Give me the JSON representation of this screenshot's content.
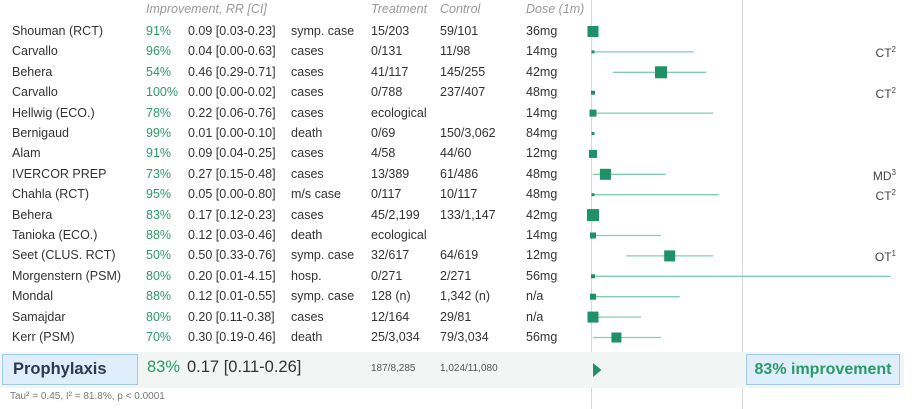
{
  "headers": {
    "improvement": "Improvement, RR [CI]",
    "treatment": "Treatment",
    "control": "Control",
    "dose": "Dose (1m)"
  },
  "chart_data": {
    "type": "forest",
    "log_scale": true,
    "studies": [
      {
        "name": "Shouman (RCT)",
        "improvement": "91%",
        "rr_text": "0.09 [0.03-0.23]",
        "rr": 0.09,
        "ci": [
          0.03,
          0.23
        ],
        "outcome": "symp. case",
        "treatment": "15/203",
        "control": "59/101",
        "dose": "36mg",
        "note": "",
        "note_sup": ""
      },
      {
        "name": "Carvallo",
        "improvement": "96%",
        "rr_text": "0.04 [0.00-0.63]",
        "rr": 0.04,
        "ci": [
          0.003,
          0.63
        ],
        "outcome": "cases",
        "treatment": "0/131",
        "control": "11/98",
        "dose": "14mg",
        "note": "CT",
        "note_sup": "2"
      },
      {
        "name": "Behera",
        "improvement": "54%",
        "rr_text": "0.46 [0.29-0.71]",
        "rr": 0.46,
        "ci": [
          0.29,
          0.71
        ],
        "outcome": "cases",
        "treatment": "41/117",
        "control": "145/255",
        "dose": "42mg",
        "note": "",
        "note_sup": ""
      },
      {
        "name": "Carvallo",
        "improvement": "100%",
        "rr_text": "0.00 [0.00-0.02]",
        "rr": 0.001,
        "ci": [
          0.0005,
          0.02
        ],
        "outcome": "cases",
        "treatment": "0/788",
        "control": "237/407",
        "dose": "48mg",
        "note": "CT",
        "note_sup": "2"
      },
      {
        "name": "Hellwig (ECO.)",
        "improvement": "78%",
        "rr_text": "0.22 [0.06-0.76]",
        "rr": 0.22,
        "ci": [
          0.06,
          0.76
        ],
        "outcome": "cases",
        "treatment": "ecological",
        "control": "",
        "dose": "14mg",
        "note": "",
        "note_sup": ""
      },
      {
        "name": "Bernigaud",
        "improvement": "99%",
        "rr_text": "0.01 [0.00-0.10]",
        "rr": 0.01,
        "ci": [
          0.002,
          0.1
        ],
        "outcome": "death",
        "treatment": "0/69",
        "control": "150/3,062",
        "dose": "84mg",
        "note": "",
        "note_sup": ""
      },
      {
        "name": "Alam",
        "improvement": "91%",
        "rr_text": "0.09 [0.04-0.25]",
        "rr": 0.09,
        "ci": [
          0.04,
          0.25
        ],
        "outcome": "cases",
        "treatment": "4/58",
        "control": "44/60",
        "dose": "12mg",
        "note": "",
        "note_sup": ""
      },
      {
        "name": "IVERCOR PREP",
        "improvement": "73%",
        "rr_text": "0.27 [0.15-0.48]",
        "rr": 0.27,
        "ci": [
          0.15,
          0.48
        ],
        "outcome": "cases",
        "treatment": "13/389",
        "control": "61/486",
        "dose": "48mg",
        "note": "MD",
        "note_sup": "3"
      },
      {
        "name": "Chahla (RCT)",
        "improvement": "95%",
        "rr_text": "0.05 [0.00-0.80]",
        "rr": 0.05,
        "ci": [
          0.003,
          0.8
        ],
        "outcome": "m/s case",
        "treatment": "0/117",
        "control": "10/117",
        "dose": "48mg",
        "note": "CT",
        "note_sup": "2"
      },
      {
        "name": "Behera",
        "improvement": "83%",
        "rr_text": "0.17 [0.12-0.23]",
        "rr": 0.17,
        "ci": [
          0.12,
          0.23
        ],
        "outcome": "cases",
        "treatment": "45/2,199",
        "control": "133/1,147",
        "dose": "42mg",
        "note": "",
        "note_sup": ""
      },
      {
        "name": "Tanioka (ECO.)",
        "improvement": "88%",
        "rr_text": "0.12 [0.03-0.46]",
        "rr": 0.12,
        "ci": [
          0.03,
          0.46
        ],
        "outcome": "death",
        "treatment": "ecological",
        "control": "",
        "dose": "14mg",
        "note": "",
        "note_sup": ""
      },
      {
        "name": "Seet (CLUS. RCT)",
        "improvement": "50%",
        "rr_text": "0.50 [0.33-0.76]",
        "rr": 0.5,
        "ci": [
          0.33,
          0.76
        ],
        "outcome": "symp. case",
        "treatment": "32/617",
        "control": "64/619",
        "dose": "12mg",
        "note": "OT",
        "note_sup": "1"
      },
      {
        "name": "Morgenstern (PSM)",
        "improvement": "80%",
        "rr_text": "0.20 [0.01-4.15]",
        "rr": 0.2,
        "ci": [
          0.01,
          4.15
        ],
        "outcome": "hosp.",
        "treatment": "0/271",
        "control": "2/271",
        "dose": "56mg",
        "note": "",
        "note_sup": ""
      },
      {
        "name": "Mondal",
        "improvement": "88%",
        "rr_text": "0.12 [0.01-0.55]",
        "rr": 0.12,
        "ci": [
          0.01,
          0.55
        ],
        "outcome": "symp. case",
        "treatment": "128 (n)",
        "control": "1,342 (n)",
        "dose": "n/a",
        "note": "",
        "note_sup": ""
      },
      {
        "name": "Samajdar",
        "improvement": "80%",
        "rr_text": "0.20 [0.11-0.38]",
        "rr": 0.2,
        "ci": [
          0.11,
          0.38
        ],
        "outcome": "cases",
        "treatment": "12/164",
        "control": "29/81",
        "dose": "n/a",
        "note": "",
        "note_sup": ""
      },
      {
        "name": "Kerr (PSM)",
        "improvement": "70%",
        "rr_text": "0.30 [0.19-0.46]",
        "rr": 0.3,
        "ci": [
          0.19,
          0.46
        ],
        "outcome": "death",
        "treatment": "25/3,034",
        "control": "79/3,034",
        "dose": "56mg",
        "note": "",
        "note_sup": ""
      }
    ],
    "summary": {
      "name": "Prophylaxis",
      "improvement": "83%",
      "rr_text": "0.17 [0.11-0.26]",
      "rr": 0.17,
      "ci": [
        0.11,
        0.26
      ],
      "treatment": "187/8,285",
      "control": "1,024/11,080",
      "result": "83% improvement"
    },
    "heterogeneity": "Tau² = 0.45, I² = 81.8%, p < 0.0001",
    "marker_color": "#1e9166",
    "ci_color": "#7fcfae"
  }
}
